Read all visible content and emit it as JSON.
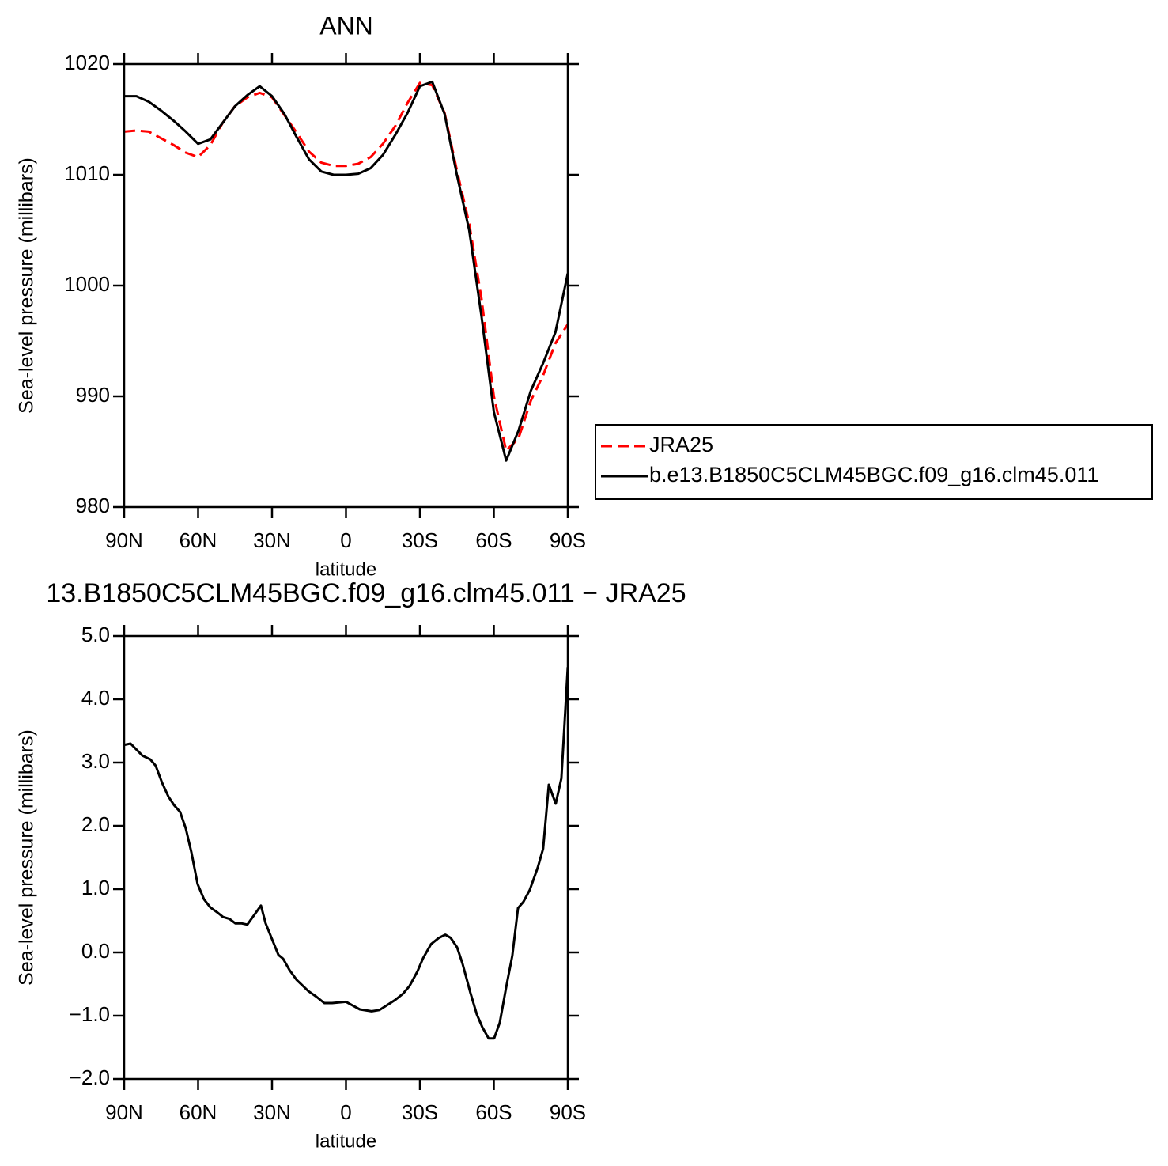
{
  "chart_data": [
    {
      "type": "line",
      "title": "ANN",
      "xlabel": "latitude",
      "ylabel": "Sea-level pressure (millibars)",
      "x": [
        90,
        85,
        80,
        75,
        70,
        65,
        60,
        55,
        50,
        45,
        40,
        35,
        30,
        25,
        20,
        15,
        10,
        5,
        0,
        -5,
        -10,
        -15,
        -20,
        -25,
        -30,
        -35,
        -40,
        -45,
        -50,
        -55,
        -60,
        -65,
        -70,
        -75,
        -80,
        -85,
        -90
      ],
      "xlim": [
        90,
        -90
      ],
      "xticks": [
        {
          "value": 90,
          "label": "90N"
        },
        {
          "value": 60,
          "label": "60N"
        },
        {
          "value": 30,
          "label": "30N"
        },
        0,
        {
          "value": -30,
          "label": "30S"
        },
        {
          "value": -60,
          "label": "60S"
        },
        {
          "value": -90,
          "label": "90S"
        }
      ],
      "ylim": [
        980,
        1020
      ],
      "yticks": [
        980,
        990,
        1000,
        1010,
        1020
      ],
      "legend": "right",
      "series": [
        {
          "name": "JRA25",
          "color": "#ff0000",
          "dash": "dashed",
          "values": [
            1013.9,
            1014.0,
            1013.9,
            1013.3,
            1012.7,
            1012.0,
            1011.6,
            1012.7,
            1014.7,
            1016.2,
            1017.0,
            1017.4,
            1017.0,
            1015.4,
            1013.8,
            1012.1,
            1011.1,
            1010.8,
            1010.8,
            1011.0,
            1011.6,
            1012.8,
            1014.4,
            1016.5,
            1018.3,
            1018.1,
            1015.6,
            1010.4,
            1005.6,
            998.8,
            990.0,
            985.1,
            986.2,
            989.6,
            991.9,
            994.8,
            996.5
          ]
        },
        {
          "name": "b.e13.B1850C5CLM45BGC.f09_g16.clm45.011",
          "color": "#000000",
          "dash": "solid",
          "values": [
            1017.1,
            1017.1,
            1016.6,
            1015.8,
            1014.9,
            1013.9,
            1012.8,
            1013.2,
            1014.7,
            1016.2,
            1017.2,
            1018.0,
            1017.1,
            1015.5,
            1013.4,
            1011.4,
            1010.3,
            1010.0,
            1010.0,
            1010.1,
            1010.6,
            1011.8,
            1013.6,
            1015.6,
            1018.0,
            1018.4,
            1015.5,
            1010.0,
            1005.0,
            997.2,
            988.6,
            984.2,
            986.9,
            990.5,
            993.0,
            995.8,
            1001.1
          ]
        }
      ]
    },
    {
      "type": "line",
      "title": "13.B1850C5CLM45BGC.f09_g16.clm45.011 − JRA25",
      "xlabel": "latitude",
      "ylabel": "Sea-level pressure (millibars)",
      "x": [
        90,
        87.4,
        82.6,
        79.4,
        77.2,
        74.6,
        72.0,
        69.8,
        67.3,
        65.0,
        62.7,
        60.2,
        57.6,
        55.0,
        52.1,
        49.9,
        47.3,
        44.9,
        42.5,
        40.0,
        34.5,
        32.6,
        29.7,
        27.4,
        25.5,
        22.9,
        20.1,
        15.3,
        12.0,
        8.8,
        5.6,
        0,
        -5.6,
        -10.4,
        -13.6,
        -16.8,
        -20.0,
        -23.2,
        -25.8,
        -29.0,
        -31.3,
        -34.5,
        -37.7,
        -40.3,
        -42.5,
        -45.1,
        -47.3,
        -50.5,
        -53.1,
        -55.3,
        -57.9,
        -60.1,
        -62.4,
        -65.0,
        -67.5,
        -69.8,
        -72.0,
        -74.6,
        -77.8,
        -80.0,
        -82.3,
        -85.1,
        -87.4,
        -90
      ],
      "xlim": [
        90,
        -90
      ],
      "xticks": [
        {
          "value": 90,
          "label": "90N"
        },
        {
          "value": 60,
          "label": "60N"
        },
        {
          "value": 30,
          "label": "30N"
        },
        0,
        {
          "value": -30,
          "label": "30S"
        },
        {
          "value": -60,
          "label": "60S"
        },
        {
          "value": -90,
          "label": "90S"
        }
      ],
      "ylim": [
        -2,
        5
      ],
      "yticks": [
        {
          "value": 5,
          "label": "5.0"
        },
        {
          "value": 4,
          "label": "4.0"
        },
        {
          "value": 3,
          "label": "3.0"
        },
        {
          "value": 2,
          "label": "2.0"
        },
        {
          "value": 1,
          "label": "1.0"
        },
        {
          "value": 0,
          "label": "0.0"
        },
        {
          "value": -1,
          "label": "−1.0"
        },
        {
          "value": -2,
          "label": "−2.0"
        }
      ],
      "series": [
        {
          "color": "#000000",
          "dash": "solid",
          "values": [
            3.28,
            3.3,
            3.11,
            3.05,
            2.95,
            2.68,
            2.46,
            2.33,
            2.22,
            1.96,
            1.58,
            1.08,
            0.84,
            0.71,
            0.63,
            0.56,
            0.53,
            0.46,
            0.46,
            0.44,
            0.74,
            0.46,
            0.18,
            -0.04,
            -0.1,
            -0.28,
            -0.43,
            -0.61,
            -0.7,
            -0.8,
            -0.8,
            -0.78,
            -0.9,
            -0.93,
            -0.91,
            -0.83,
            -0.75,
            -0.65,
            -0.53,
            -0.3,
            -0.09,
            0.13,
            0.23,
            0.28,
            0.23,
            0.08,
            -0.18,
            -0.64,
            -0.98,
            -1.18,
            -1.36,
            -1.36,
            -1.11,
            -0.55,
            -0.05,
            0.7,
            0.8,
            0.99,
            1.34,
            1.64,
            2.65,
            2.35,
            2.75,
            4.51
          ]
        }
      ]
    }
  ]
}
